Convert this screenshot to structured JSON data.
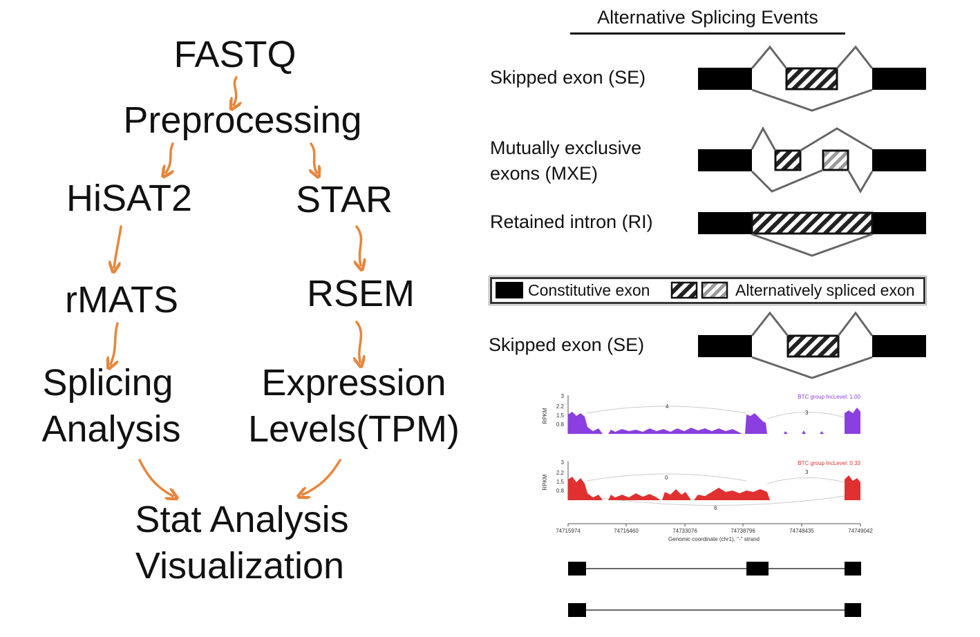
{
  "workflow": {
    "fastq": "FASTQ",
    "preprocessing": "Preprocessing",
    "hisat2": "HiSAT2",
    "star": "STAR",
    "rmats": "rMATS",
    "rsem": "RSEM",
    "splicing_line1": "Splicing",
    "splicing_line2": "Analysis",
    "expression_line1": "Expression",
    "expression_line2": "Levels(TPM)",
    "stat_line1": "Stat Analysis",
    "stat_line2": "Visualization",
    "arrow_color": "#e8853b"
  },
  "events": {
    "title": "Alternative Splicing Events",
    "se_label": "Skipped exon (SE)",
    "mxe_label_line1": "Mutually exclusive",
    "mxe_label_line2": "exons (MXE)",
    "ri_label": "Retained intron (RI)",
    "legend_constitutive": "Constitutive exon",
    "legend_alternative": "Alternatively spliced exon",
    "se2_label": "Skipped exon (SE)"
  },
  "sashimi": {
    "top_track": {
      "legend": "BTC group IncLevel: 1.00",
      "color": "#8a3fe0",
      "junctions": [
        "4",
        "3"
      ]
    },
    "bottom_track": {
      "legend": "BTC group IncLevel: 0.33",
      "color": "#e03030",
      "junctions": [
        "0",
        "3",
        "6"
      ]
    },
    "y_axis_label": "RPKM",
    "y_ticks": [
      "3",
      "2.2",
      "1.5",
      "0.8"
    ],
    "x_ticks": [
      "74715974",
      "74716460",
      "74733076",
      "74738796",
      "74748435",
      "74749042"
    ],
    "x_axis_label": "Genomic coordinate (chr1), \"-\" strand"
  }
}
